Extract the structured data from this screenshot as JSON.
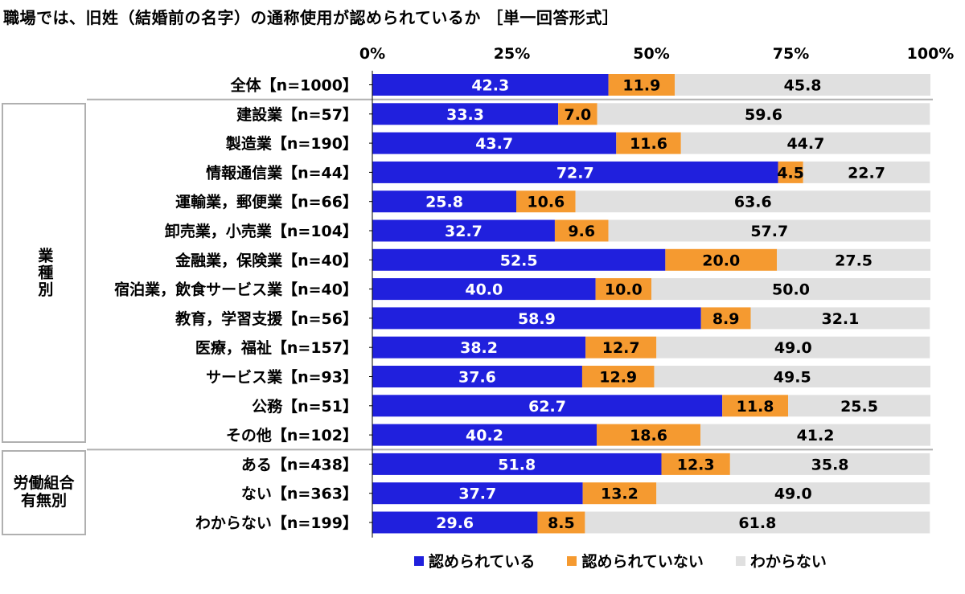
{
  "title": "職場では、旧姓（結婚前の名字）の通称使用が認められているか ［単一回答形式］",
  "groups": [
    {
      "label": "業種別",
      "vertical": true
    },
    {
      "label": "労働組合有無別",
      "vertical": false
    }
  ],
  "colors": {
    "series1": "#2020dd",
    "series2": "#f59a30",
    "series3": "#e0e0e0"
  },
  "chart_data": {
    "type": "bar",
    "orientation": "horizontal",
    "stacked": true,
    "xlim": [
      0,
      100
    ],
    "x_ticks": [
      "0%",
      "25%",
      "50%",
      "75%",
      "100%"
    ],
    "categories": [
      "全体【n=1000】",
      "建設業【n=57】",
      "製造業【n=190】",
      "情報通信業【n=44】",
      "運輸業，郵便業【n=66】",
      "卸売業，小売業【n=104】",
      "金融業，保険業【n=40】",
      "宿泊業，飲食サービス業【n=40】",
      "教育，学習支援【n=56】",
      "医療，福祉【n=157】",
      "サービス業【n=93】",
      "公務【n=51】",
      "その他【n=102】",
      "ある【n=438】",
      "ない【n=363】",
      "わからない【n=199】"
    ],
    "series": [
      {
        "name": "認められている",
        "values": [
          42.3,
          33.3,
          43.7,
          72.7,
          25.8,
          32.7,
          52.5,
          40.0,
          58.9,
          38.2,
          37.6,
          62.7,
          40.2,
          51.8,
          37.7,
          29.6
        ]
      },
      {
        "name": "認められていない",
        "values": [
          11.9,
          7.0,
          11.6,
          4.5,
          10.6,
          9.6,
          20.0,
          10.0,
          8.9,
          12.7,
          12.9,
          11.8,
          18.6,
          12.3,
          13.2,
          8.5
        ]
      },
      {
        "name": "わからない",
        "values": [
          45.8,
          59.6,
          44.7,
          22.7,
          63.6,
          57.7,
          27.5,
          50.0,
          32.1,
          49.0,
          49.5,
          25.5,
          41.2,
          35.8,
          49.0,
          61.8
        ]
      }
    ],
    "labels": [
      [
        "42.3",
        "11.9",
        "45.8"
      ],
      [
        "33.3",
        "7.0",
        "59.6"
      ],
      [
        "43.7",
        "11.6",
        "44.7"
      ],
      [
        "72.7",
        "4.5",
        "22.7"
      ],
      [
        "25.8",
        "10.6",
        "63.6"
      ],
      [
        "32.7",
        "9.6",
        "57.7"
      ],
      [
        "52.5",
        "20.0",
        "27.5"
      ],
      [
        "40.0",
        "10.0",
        "50.0"
      ],
      [
        "58.9",
        "8.9",
        "32.1"
      ],
      [
        "38.2",
        "12.7",
        "49.0"
      ],
      [
        "37.6",
        "12.9",
        "49.5"
      ],
      [
        "62.7",
        "11.8",
        "25.5"
      ],
      [
        "40.2",
        "18.6",
        "41.2"
      ],
      [
        "51.8",
        "12.3",
        "35.8"
      ],
      [
        "37.7",
        "13.2",
        "49.0"
      ],
      [
        "29.6",
        "8.5",
        "61.8"
      ]
    ],
    "legend_position": "bottom"
  }
}
